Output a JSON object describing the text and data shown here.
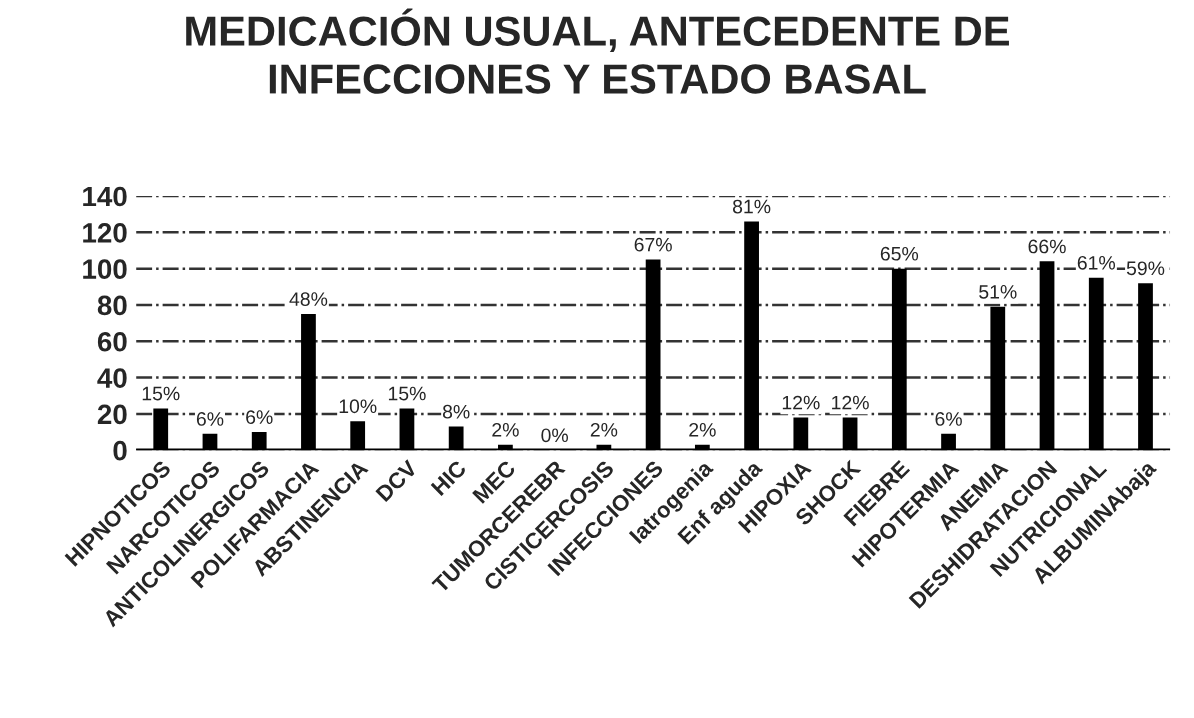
{
  "chart_data": {
    "type": "bar",
    "title": "MEDICACIÓN USUAL, ANTECEDENTE DE\nINFECCIONES Y ESTADO BASAL",
    "categories": [
      "HIPNOTICOS",
      "NARCOTICOS",
      "ANTICOLINERGICOS",
      "POLIFARMACIA",
      "ABSTINENCIA",
      "DCV",
      "HIC",
      "MEC",
      "TUMORCEREBR",
      "CISTICERCOSIS",
      "INFECCIONES",
      "Iatrogenia",
      "Enf aguda",
      "HIPOXIA",
      "SHOCK",
      "FIEBRE",
      "HIPOTERMIA",
      "ANEMIA",
      "DESHIDRATACION",
      "NUTRICIONAL",
      "ALBUMINAbaja"
    ],
    "values": [
      23,
      9,
      10,
      75,
      16,
      23,
      13,
      3,
      0,
      3,
      105,
      3,
      126,
      18,
      18,
      100,
      9,
      79,
      104,
      95,
      92
    ],
    "annotations": [
      "15%",
      "6%",
      "6%",
      "48%",
      "10%",
      "15%",
      "8%",
      "2%",
      "0%",
      "2%",
      "67%",
      "2%",
      "81%",
      "12%",
      "12%",
      "65%",
      "6%",
      "51%",
      "66%",
      "61%",
      "59%"
    ],
    "color": "#000000",
    "ylim": [
      0,
      140
    ],
    "yticks": [
      0,
      20,
      40,
      60,
      80,
      100,
      120,
      140
    ],
    "grid": "y"
  }
}
